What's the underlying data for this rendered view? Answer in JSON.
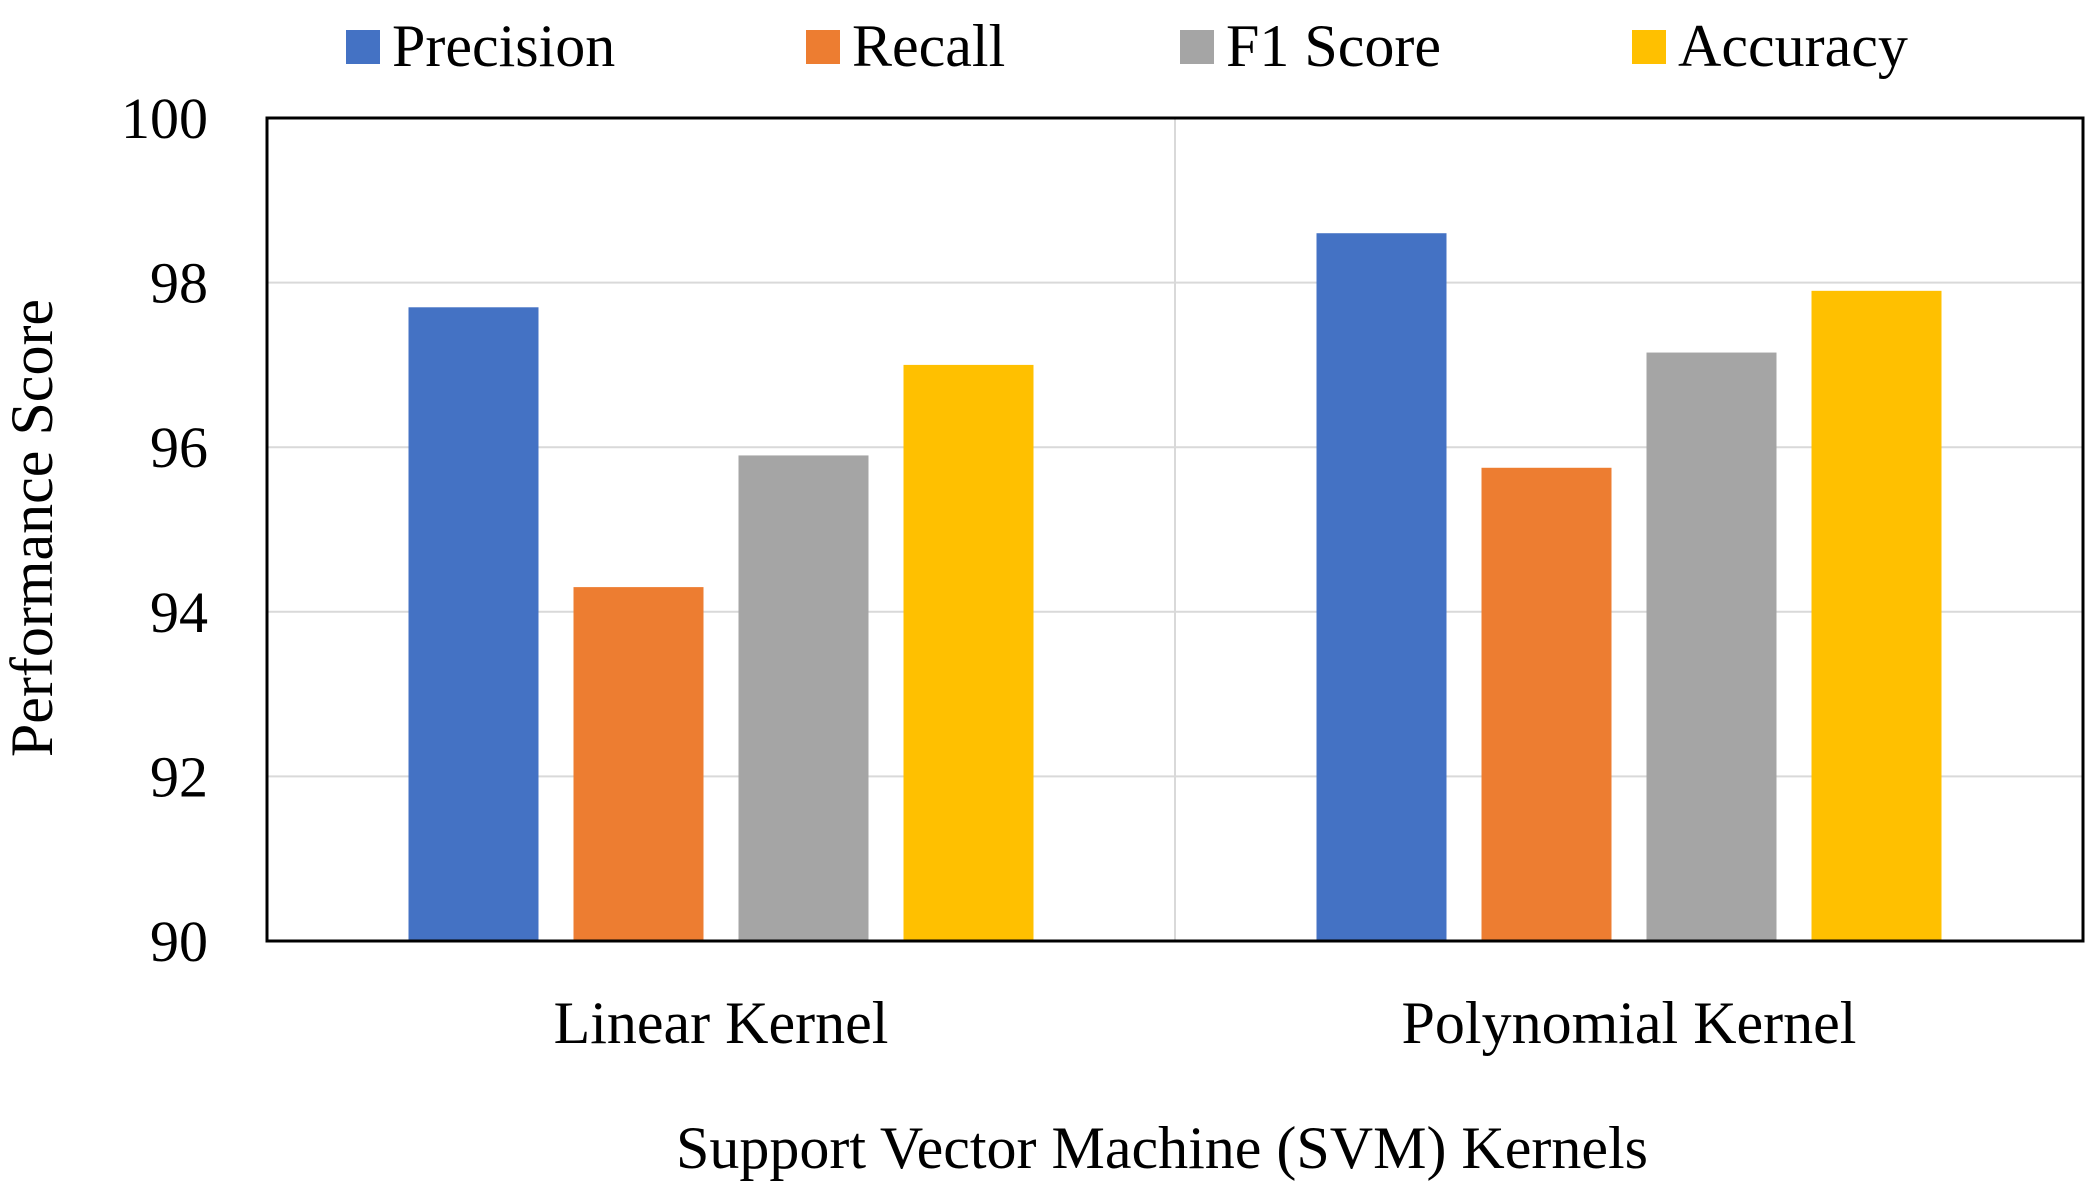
{
  "chart_data": {
    "type": "bar",
    "title": "",
    "xlabel": "Support Vector Machine (SVM) Kernels",
    "ylabel": "Performance Score",
    "categories": [
      "Linear Kernel",
      "Polynomial Kernel"
    ],
    "series": [
      {
        "name": "Precision",
        "color": "#4472C4",
        "values": [
          97.7,
          98.6
        ]
      },
      {
        "name": "Recall",
        "color": "#ED7D31",
        "values": [
          94.3,
          95.75
        ]
      },
      {
        "name": "F1 Score",
        "color": "#A5A5A5",
        "values": [
          95.9,
          97.15
        ]
      },
      {
        "name": "Accuracy",
        "color": "#FFC000",
        "values": [
          97.0,
          97.9
        ]
      }
    ],
    "ylim": [
      90,
      100
    ],
    "yticks": [
      "90",
      "92",
      "94",
      "96",
      "98",
      "100"
    ],
    "grid": true,
    "legend": "top"
  }
}
